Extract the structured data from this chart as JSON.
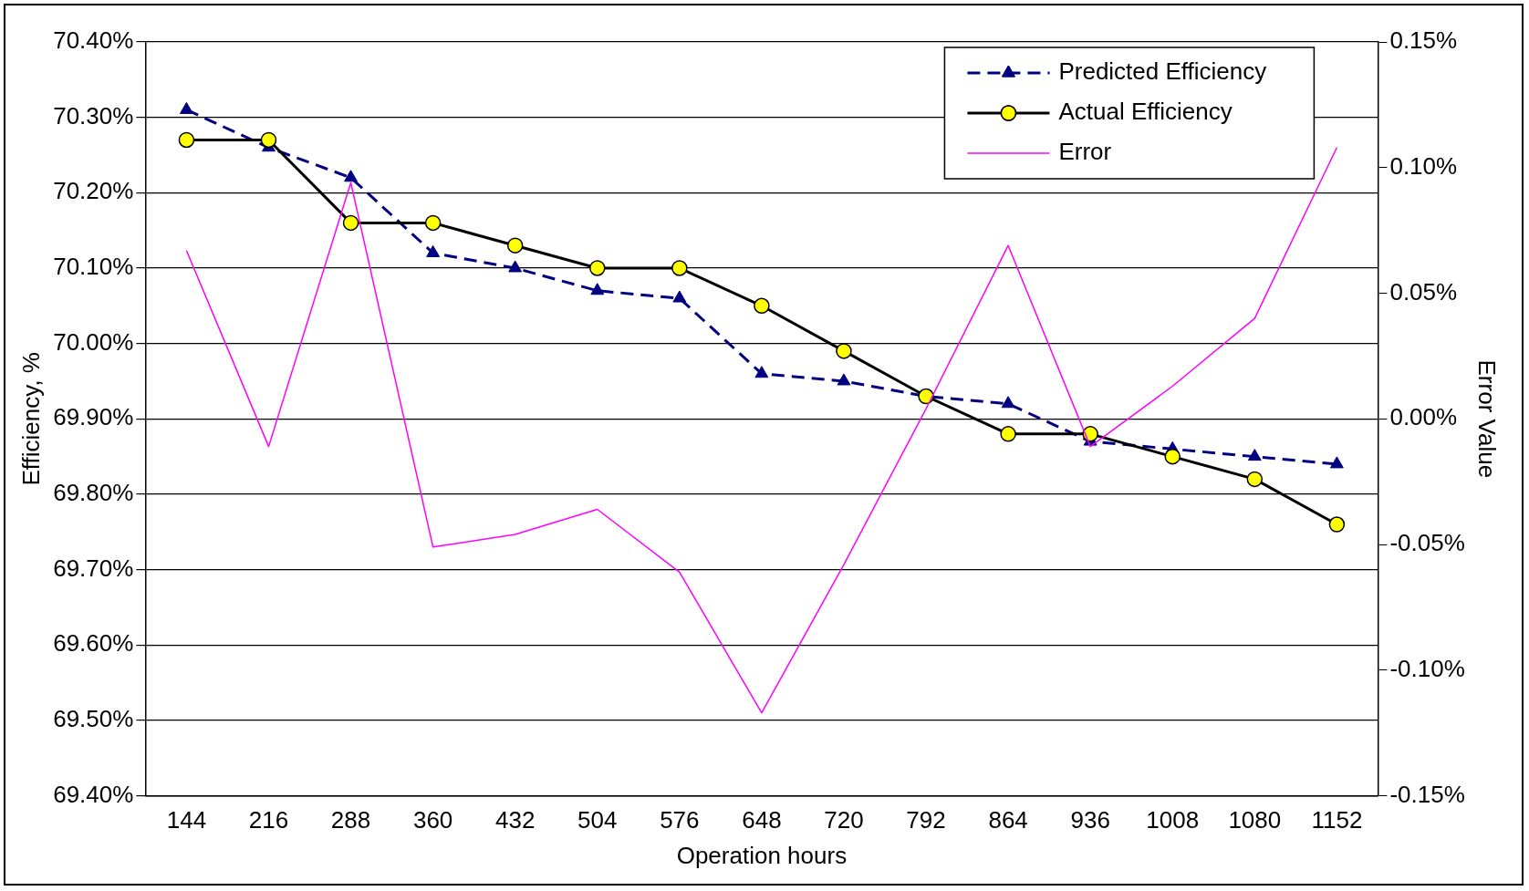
{
  "chart_data": {
    "type": "line",
    "categories": [
      "144",
      "216",
      "288",
      "360",
      "432",
      "504",
      "576",
      "648",
      "720",
      "792",
      "864",
      "936",
      "1008",
      "1080",
      "1152"
    ],
    "xlabel": "Operation hours",
    "ylabel": "Efficiency, %",
    "y2label": "Error Value",
    "ylim": [
      69.4,
      70.4
    ],
    "yticks": [
      {
        "value": 69.4,
        "label": "69.40%"
      },
      {
        "value": 69.5,
        "label": "69.50%"
      },
      {
        "value": 69.6,
        "label": "69.60%"
      },
      {
        "value": 69.7,
        "label": "69.70%"
      },
      {
        "value": 69.8,
        "label": "69.80%"
      },
      {
        "value": 69.9,
        "label": "69.90%"
      },
      {
        "value": 70.0,
        "label": "70.00%"
      },
      {
        "value": 70.1,
        "label": "70.10%"
      },
      {
        "value": 70.2,
        "label": "70.20%"
      },
      {
        "value": 70.3,
        "label": "70.30%"
      },
      {
        "value": 70.4,
        "label": "70.40%"
      }
    ],
    "y2lim": [
      -0.15,
      0.15
    ],
    "y2ticks": [
      {
        "value": -0.15,
        "label": "-0.15%"
      },
      {
        "value": -0.1,
        "label": "-0.10%"
      },
      {
        "value": -0.05,
        "label": "-0.05%"
      },
      {
        "value": 0,
        "label": "0.00%"
      },
      {
        "value": 0.05,
        "label": "0.05%"
      },
      {
        "value": 0.1,
        "label": "0.10%"
      },
      {
        "value": 0.15,
        "label": "0.15%"
      }
    ],
    "grid": "y",
    "legend": "top right",
    "series": [
      {
        "name": "Predicted Efficiency",
        "color": "#000080",
        "marker": "triangle",
        "line_style": "dashed",
        "values": [
          70.31,
          70.26,
          70.22,
          70.12,
          70.1,
          70.07,
          70.06,
          69.96,
          69.95,
          69.93,
          69.92,
          69.87,
          69.86,
          69.85,
          69.84
        ]
      },
      {
        "name": "Actual Efficiency",
        "color": "#000000",
        "marker": "circle",
        "line_style": "solid",
        "values": [
          70.27,
          70.27,
          70.16,
          70.16,
          70.13,
          70.1,
          70.1,
          70.05,
          69.99,
          69.93,
          69.88,
          69.88,
          69.85,
          69.82,
          69.76
        ]
      },
      {
        "name": "Error",
        "color": "#ff00ff",
        "marker": "none",
        "line_style": "solid",
        "axis": "y2",
        "values": [
          0.067,
          -0.011,
          0.094,
          -0.051,
          -0.046,
          -0.036,
          -0.061,
          -0.117,
          -0.058,
          0.004,
          0.069,
          -0.011,
          0.013,
          0.04,
          0.108
        ]
      }
    ]
  }
}
